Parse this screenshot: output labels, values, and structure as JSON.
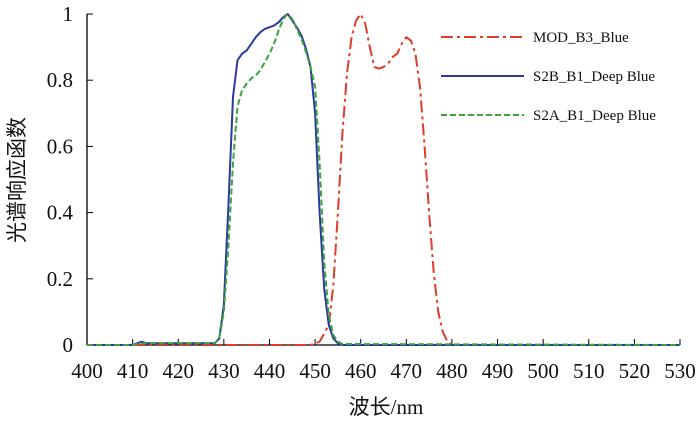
{
  "chart_data": {
    "type": "line",
    "xlabel": "波长/nm",
    "ylabel": "光谱响应函数",
    "xlim": [
      400,
      530
    ],
    "ylim": [
      0,
      1
    ],
    "x_ticks": [
      400,
      410,
      420,
      430,
      440,
      450,
      460,
      470,
      480,
      490,
      500,
      510,
      520,
      530
    ],
    "y_ticks": [
      0,
      0.2,
      0.4,
      0.6,
      0.8,
      1
    ],
    "y_tick_labels": [
      "0",
      "0.2",
      "0.4",
      "0.6",
      "0.8",
      "1"
    ],
    "grid": false,
    "legend": "top-right",
    "series": [
      {
        "name": "MOD_B3_Blue",
        "color": "#e23b2a",
        "dash": "dashdot",
        "x": [
          400,
          449,
          451,
          453,
          454,
          455,
          456,
          457,
          458,
          459,
          460,
          461,
          462,
          463,
          464,
          465,
          466,
          467,
          468,
          469,
          470,
          471,
          472,
          473,
          474,
          475,
          476,
          477,
          478,
          479,
          480,
          481,
          530
        ],
        "y": [
          0,
          0,
          0.01,
          0.06,
          0.18,
          0.4,
          0.64,
          0.82,
          0.93,
          0.98,
          1.0,
          0.97,
          0.9,
          0.84,
          0.835,
          0.84,
          0.85,
          0.87,
          0.88,
          0.91,
          0.93,
          0.92,
          0.88,
          0.78,
          0.6,
          0.4,
          0.22,
          0.1,
          0.04,
          0.01,
          0,
          0,
          0
        ]
      },
      {
        "name": "S2B_B1_Deep Blue",
        "color": "#2a3a9e",
        "dash": "solid",
        "x": [
          400,
          410,
          411,
          412,
          413,
          428,
          429,
          430,
          431,
          432,
          433,
          434,
          435,
          436,
          437,
          438,
          439,
          440,
          441,
          442,
          443,
          444,
          445,
          446,
          447,
          448,
          449,
          450,
          451,
          452,
          453,
          454,
          455,
          456,
          530
        ],
        "y": [
          0,
          0,
          0.005,
          0.01,
          0.005,
          0.005,
          0.02,
          0.12,
          0.42,
          0.75,
          0.86,
          0.88,
          0.89,
          0.91,
          0.93,
          0.945,
          0.955,
          0.96,
          0.965,
          0.975,
          0.99,
          1.0,
          0.98,
          0.96,
          0.935,
          0.895,
          0.84,
          0.7,
          0.4,
          0.17,
          0.06,
          0.02,
          0.005,
          0,
          0
        ]
      },
      {
        "name": "S2A_B1_Deep Blue",
        "color": "#3aa33a",
        "dash": "dashed",
        "x": [
          400,
          410,
          412,
          414,
          428,
          429,
          430,
          431,
          432,
          433,
          434,
          435,
          436,
          437,
          438,
          439,
          440,
          441,
          442,
          443,
          444,
          445,
          446,
          447,
          448,
          449,
          450,
          451,
          452,
          453,
          454,
          455,
          456,
          530
        ],
        "y": [
          0,
          0,
          0.005,
          0.005,
          0.005,
          0.02,
          0.1,
          0.3,
          0.55,
          0.72,
          0.77,
          0.79,
          0.805,
          0.815,
          0.83,
          0.855,
          0.88,
          0.91,
          0.95,
          0.985,
          1.0,
          0.985,
          0.955,
          0.925,
          0.885,
          0.84,
          0.78,
          0.55,
          0.25,
          0.09,
          0.03,
          0.01,
          0.003,
          0
        ]
      }
    ]
  }
}
